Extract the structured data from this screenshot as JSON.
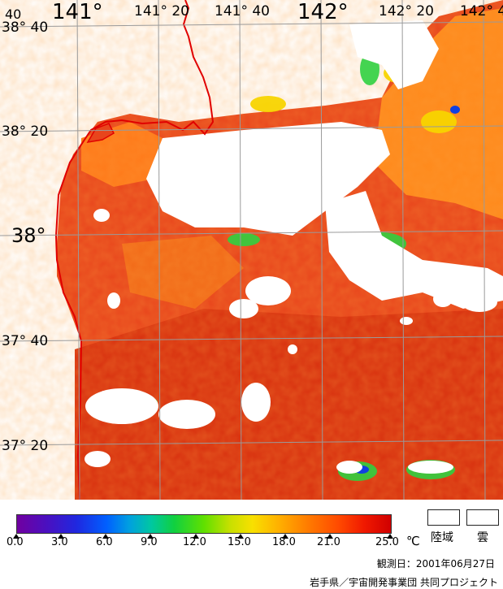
{
  "map": {
    "lon_labels": [
      "141°",
      "141° 20",
      "141° 40",
      "142°",
      "142° 20",
      "142° 4"
    ],
    "lat_labels": [
      "38° 40",
      "38° 20",
      "38°",
      "37° 40",
      "37° 20"
    ],
    "corner_label": "40"
  },
  "colorbar": {
    "ticks": [
      "0.0",
      "3.0",
      "6.0",
      "9.0",
      "12.0",
      "15.0",
      "18.0",
      "21.0",
      "25.0"
    ],
    "unit": "℃"
  },
  "legend": {
    "land": "陸域",
    "cloud": "雲"
  },
  "observation": "観測日：2001年06月27日",
  "credit": "岩手県／宇宙開発事業団 共同プロジェクト",
  "colors": {
    "sea_warm": "#e8401a",
    "sea_hot": "#d82a10",
    "sea_mild": "#ff8a1a",
    "cloud": "#ffffff",
    "coastline": "#e00000",
    "grid": "#9a9a9a"
  }
}
